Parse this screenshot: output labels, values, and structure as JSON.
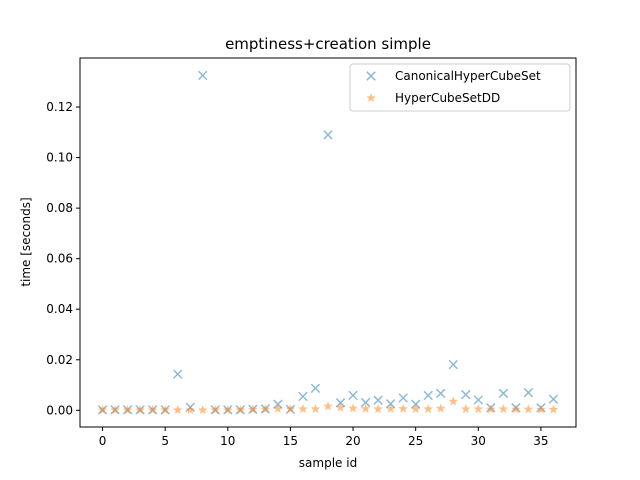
{
  "chart_data": {
    "type": "scatter",
    "title": "emptiness+creation simple",
    "xlabel": "sample id",
    "ylabel": "time [seconds]",
    "xlim": [
      -1.8,
      37.8
    ],
    "ylim": [
      -0.0066,
      0.1394
    ],
    "xticks": [
      0,
      5,
      10,
      15,
      20,
      25,
      30,
      35
    ],
    "xtick_labels": [
      "0",
      "5",
      "10",
      "15",
      "20",
      "25",
      "30",
      "35"
    ],
    "yticks": [
      0.0,
      0.02,
      0.04,
      0.06,
      0.08,
      0.1,
      0.12
    ],
    "ytick_labels": [
      "0.00",
      "0.02",
      "0.04",
      "0.06",
      "0.08",
      "0.10",
      "0.12"
    ],
    "grid": false,
    "legend_position": "top-right",
    "series": [
      {
        "name": "CanonicalHyperCubeSet",
        "marker": "x",
        "color": "#1f77b4",
        "x": [
          0,
          1,
          2,
          3,
          4,
          5,
          6,
          7,
          8,
          9,
          10,
          11,
          12,
          13,
          14,
          15,
          16,
          17,
          18,
          19,
          20,
          21,
          22,
          23,
          24,
          25,
          26,
          27,
          28,
          29,
          30,
          31,
          32,
          33,
          34,
          35,
          36
        ],
        "y": [
          0.0002,
          0.0002,
          0.0002,
          0.0002,
          0.0002,
          0.0002,
          0.0143,
          0.0012,
          0.1325,
          0.0002,
          0.0002,
          0.0002,
          0.0004,
          0.0006,
          0.0024,
          0.0004,
          0.0055,
          0.0087,
          0.109,
          0.003,
          0.0059,
          0.0031,
          0.004,
          0.0026,
          0.0049,
          0.0024,
          0.0059,
          0.0067,
          0.0181,
          0.0062,
          0.0041,
          0.001,
          0.0067,
          0.001,
          0.007,
          0.001,
          0.0044
        ]
      },
      {
        "name": "HyperCubeSetDD",
        "marker": "star",
        "color": "#ff7f0e",
        "x": [
          0,
          1,
          2,
          3,
          4,
          5,
          6,
          7,
          8,
          9,
          10,
          11,
          12,
          13,
          14,
          15,
          16,
          17,
          18,
          19,
          20,
          21,
          22,
          23,
          24,
          25,
          26,
          27,
          28,
          29,
          30,
          31,
          32,
          33,
          34,
          35,
          36
        ],
        "y": [
          0.0001,
          0.0001,
          0.0001,
          0.0001,
          0.0001,
          0.0001,
          0.0001,
          0.0001,
          0.0001,
          0.0001,
          0.0001,
          0.0001,
          0.0003,
          0.0004,
          0.0006,
          0.0005,
          0.0005,
          0.0005,
          0.0016,
          0.0011,
          0.0008,
          0.0006,
          0.0005,
          0.0006,
          0.0006,
          0.0005,
          0.0005,
          0.0007,
          0.0035,
          0.0005,
          0.0005,
          0.0004,
          0.0005,
          0.0004,
          0.0004,
          0.0003,
          0.0003
        ]
      }
    ]
  }
}
